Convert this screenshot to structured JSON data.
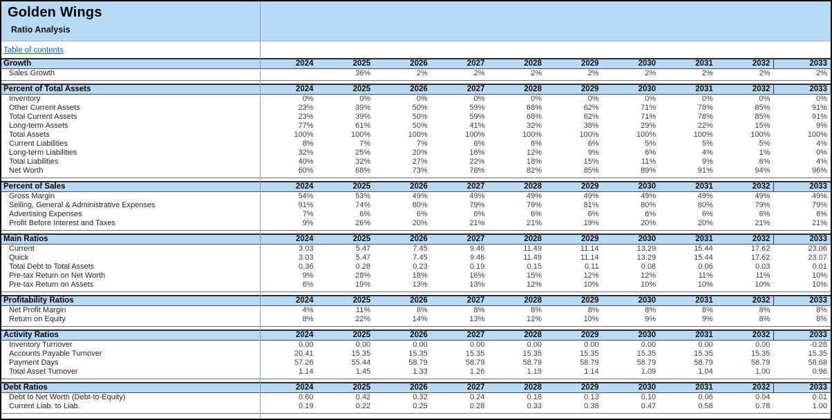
{
  "header": {
    "title": "Golden Wings",
    "subtitle": "Ratio Analysis"
  },
  "toc": {
    "label": "Table of contents"
  },
  "years": [
    "2024",
    "2025",
    "2026",
    "2027",
    "2028",
    "2029",
    "2030",
    "2031",
    "2032",
    "2033"
  ],
  "colors": {
    "band_blue": "#b8d9f6",
    "link_blue": "#0563c1",
    "border": "#000000"
  },
  "sections": [
    {
      "title": "Growth",
      "rows": [
        {
          "label": "Sales Growth",
          "values": [
            "",
            "36%",
            "2%",
            "2%",
            "2%",
            "2%",
            "2%",
            "2%",
            "2%",
            "2%"
          ]
        }
      ]
    },
    {
      "title": "Percent of Total Assets",
      "rows": [
        {
          "label": "Inventory",
          "values": [
            "0%",
            "0%",
            "0%",
            "0%",
            "0%",
            "0%",
            "0%",
            "0%",
            "0%",
            "0%"
          ]
        },
        {
          "label": "Other Current Assets",
          "values": [
            "23%",
            "39%",
            "50%",
            "59%",
            "68%",
            "62%",
            "71%",
            "78%",
            "85%",
            "91%"
          ]
        },
        {
          "label": "Total Current Assets",
          "values": [
            "23%",
            "39%",
            "50%",
            "59%",
            "68%",
            "62%",
            "71%",
            "78%",
            "85%",
            "91%"
          ]
        },
        {
          "label": "Long-term Assets",
          "values": [
            "77%",
            "61%",
            "50%",
            "41%",
            "32%",
            "38%",
            "29%",
            "22%",
            "15%",
            "9%"
          ]
        },
        {
          "label": "Total Assets",
          "values": [
            "100%",
            "100%",
            "100%",
            "100%",
            "100%",
            "100%",
            "100%",
            "100%",
            "100%",
            "100%"
          ]
        },
        {
          "label": "Current Liabilities",
          "values": [
            "8%",
            "7%",
            "7%",
            "6%",
            "6%",
            "6%",
            "5%",
            "5%",
            "5%",
            "4%"
          ]
        },
        {
          "label": "Long-term Liabilities",
          "values": [
            "32%",
            "25%",
            "20%",
            "16%",
            "12%",
            "9%",
            "6%",
            "4%",
            "1%",
            "0%"
          ]
        },
        {
          "label": "Total Liabilities",
          "values": [
            "40%",
            "32%",
            "27%",
            "22%",
            "18%",
            "15%",
            "11%",
            "9%",
            "6%",
            "4%"
          ]
        },
        {
          "label": "Net Worth",
          "values": [
            "60%",
            "68%",
            "73%",
            "78%",
            "82%",
            "85%",
            "89%",
            "91%",
            "94%",
            "96%"
          ]
        }
      ]
    },
    {
      "title": "Percent of Sales",
      "rows": [
        {
          "label": "Gross Margin",
          "values": [
            "54%",
            "53%",
            "49%",
            "49%",
            "49%",
            "49%",
            "49%",
            "49%",
            "49%",
            "49%"
          ]
        },
        {
          "label": "Selling, General & Administrative Expenses",
          "values": [
            "91%",
            "74%",
            "80%",
            "79%",
            "79%",
            "81%",
            "80%",
            "80%",
            "79%",
            "79%"
          ]
        },
        {
          "label": "Advertising Expenses",
          "values": [
            "7%",
            "6%",
            "6%",
            "6%",
            "6%",
            "6%",
            "6%",
            "6%",
            "6%",
            "6%"
          ]
        },
        {
          "label": "Profit Before Interest and Taxes",
          "values": [
            "9%",
            "26%",
            "20%",
            "21%",
            "21%",
            "19%",
            "20%",
            "20%",
            "21%",
            "21%"
          ]
        }
      ]
    },
    {
      "title": "Main Ratios",
      "rows": [
        {
          "label": "Current",
          "values": [
            "3.03",
            "5.47",
            "7.45",
            "9.46",
            "11.49",
            "11.14",
            "13.29",
            "15.44",
            "17.62",
            "23.06"
          ]
        },
        {
          "label": "Quick",
          "values": [
            "3.03",
            "5.47",
            "7.45",
            "9.46",
            "11.49",
            "11.14",
            "13.29",
            "15.44",
            "17.62",
            "23.07"
          ]
        },
        {
          "label": "Total Debt to Total Assets",
          "values": [
            "0.36",
            "0.28",
            "0.23",
            "0.19",
            "0.15",
            "0.11",
            "0.08",
            "0.06",
            "0.03",
            "0.01"
          ]
        },
        {
          "label": "Pre-tax Return on Net Worth",
          "values": [
            "9%",
            "28%",
            "18%",
            "16%",
            "15%",
            "12%",
            "12%",
            "11%",
            "11%",
            "10%"
          ]
        },
        {
          "label": "Pre-tax Return on Assets",
          "values": [
            "6%",
            "19%",
            "13%",
            "13%",
            "12%",
            "10%",
            "10%",
            "10%",
            "10%",
            "10%"
          ]
        }
      ]
    },
    {
      "title": "Profitability Ratios",
      "rows": [
        {
          "label": "Net Profit Margin",
          "values": [
            "4%",
            "11%",
            "8%",
            "8%",
            "8%",
            "8%",
            "8%",
            "8%",
            "8%",
            "8%"
          ]
        },
        {
          "label": "Return on Equity",
          "values": [
            "8%",
            "22%",
            "14%",
            "13%",
            "12%",
            "10%",
            "9%",
            "9%",
            "8%",
            "8%"
          ]
        }
      ]
    },
    {
      "title": "Activity Ratios",
      "rows": [
        {
          "label": "Inventory Turnover",
          "values": [
            "0.00",
            "0.00",
            "0.00",
            "0.00",
            "0.00",
            "0.00",
            "0.00",
            "0.00",
            "0.00",
            "-0.28"
          ]
        },
        {
          "label": "Accounts Payable Turnover",
          "values": [
            "20.41",
            "15.35",
            "15.35",
            "15.35",
            "15.35",
            "15.35",
            "15.35",
            "15.35",
            "15.35",
            "15.35"
          ]
        },
        {
          "label": "Payment Days",
          "values": [
            "57.26",
            "55.44",
            "58.79",
            "58.79",
            "58.79",
            "58.79",
            "58.79",
            "58.79",
            "58.79",
            "58.68"
          ]
        },
        {
          "label": "Total Asset Turnover",
          "values": [
            "1.14",
            "1.45",
            "1.33",
            "1.26",
            "1.19",
            "1.14",
            "1.09",
            "1.04",
            "1.00",
            "0.96"
          ]
        }
      ]
    },
    {
      "title": "Debt Ratios",
      "rows": [
        {
          "label": "Debt to Net Worth (Debt-to-Equity)",
          "values": [
            "0.60",
            "0.42",
            "0.32",
            "0.24",
            "0.18",
            "0.13",
            "0.10",
            "0.06",
            "0.04",
            "0.01"
          ]
        },
        {
          "label": "Current Liab. to Liab.",
          "values": [
            "0.19",
            "0.22",
            "0.25",
            "0.28",
            "0.33",
            "0.38",
            "0.47",
            "0.58",
            "0.78",
            "1.00"
          ]
        }
      ]
    }
  ]
}
